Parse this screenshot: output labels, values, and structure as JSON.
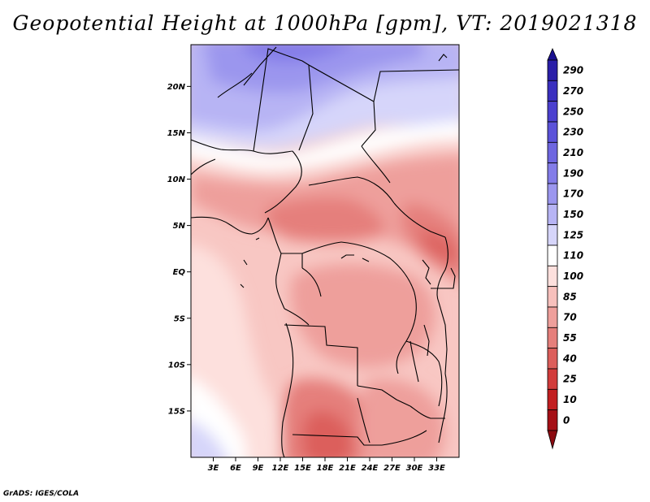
{
  "title": "Geopotential Height at 1000hPa [gpm], VT: 2019021318",
  "footer": "GrADS: IGES/COLA",
  "map": {
    "lat_labels": [
      "20N",
      "15N",
      "10N",
      "5N",
      "EQ",
      "5S",
      "10S",
      "15S"
    ],
    "lat_values": [
      20,
      15,
      10,
      5,
      0,
      -5,
      -10,
      -15
    ],
    "lon_labels": [
      "3E",
      "6E",
      "9E",
      "12E",
      "15E",
      "18E",
      "21E",
      "24E",
      "27E",
      "30E",
      "33E"
    ],
    "lon_values": [
      3,
      6,
      9,
      12,
      15,
      18,
      21,
      24,
      27,
      30,
      33
    ],
    "lon_range": [
      0,
      36
    ],
    "lat_range": [
      -20,
      24.5
    ]
  },
  "colorbar": {
    "labels": [
      "290",
      "270",
      "250",
      "230",
      "210",
      "190",
      "170",
      "150",
      "125",
      "110",
      "100",
      "85",
      "70",
      "55",
      "40",
      "25",
      "10",
      "0"
    ],
    "colors": [
      "#2a1ea8",
      "#3a2fbf",
      "#4b40cf",
      "#5b52d9",
      "#6e66e0",
      "#837ce8",
      "#9b96ee",
      "#b7b4f4",
      "#d6d5fa",
      "#ffffff",
      "#fde0dd",
      "#f7c0bc",
      "#ee9f9b",
      "#e57f7b",
      "#dc5e5b",
      "#d23c3b",
      "#c21e20",
      "#a50f15"
    ],
    "top_color": "#1a1090",
    "bottom_color": "#8b0a10"
  }
}
